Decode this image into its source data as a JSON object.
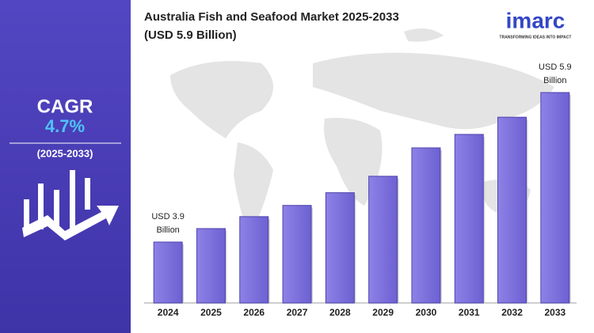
{
  "chart_data": {
    "type": "bar",
    "title": "Australia Fish and Seafood Market 2025-2033",
    "subtitle": "(USD 5.9 Billion)",
    "categories": [
      "2024",
      "2025",
      "2026",
      "2027",
      "2028",
      "2029",
      "2030",
      "2031",
      "2032",
      "2033"
    ],
    "values": [
      3.9,
      4.08,
      4.24,
      4.39,
      4.56,
      4.78,
      5.16,
      5.34,
      5.57,
      5.9
    ],
    "value_labels": [
      "USD 3.9 Billion",
      null,
      null,
      null,
      null,
      null,
      null,
      null,
      null,
      "USD 5.9 Billion"
    ],
    "color": "#7b6fdc",
    "cagr": {
      "label": "CAGR",
      "value": "4.7%",
      "period": "(2025-2033)"
    },
    "brand": {
      "name": "imarc",
      "tagline": "TRANSFORMING IDEAS INTO IMPACT"
    }
  }
}
